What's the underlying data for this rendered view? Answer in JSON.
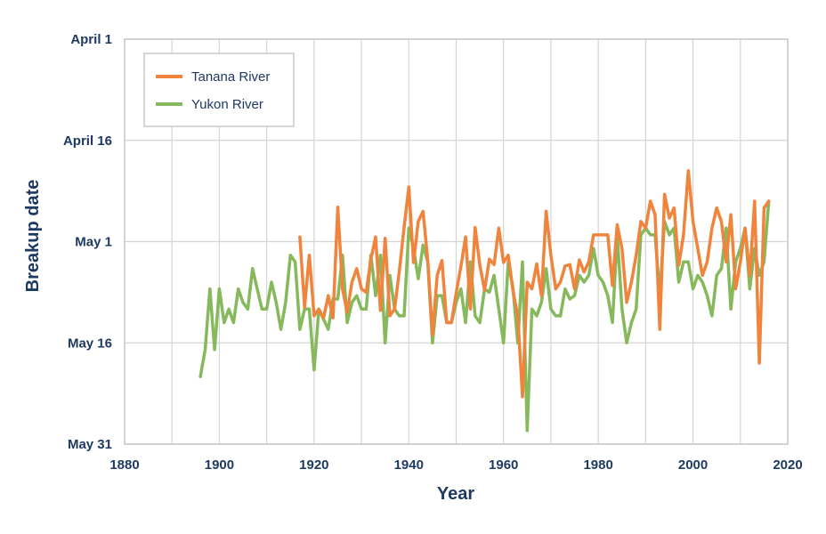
{
  "chart_data": {
    "type": "line",
    "title": "",
    "xlabel": "Year",
    "ylabel": "Breakup date",
    "xlim": [
      1880,
      2020
    ],
    "x_ticks": [
      1880,
      1900,
      1920,
      1940,
      1960,
      1980,
      2000,
      2020
    ],
    "ylim_day_of_year": [
      91,
      151
    ],
    "y_axis_inverted": true,
    "y_ticks": [
      {
        "label": "April 1",
        "day": 91
      },
      {
        "label": "April 16",
        "day": 106
      },
      {
        "label": "May 1",
        "day": 121
      },
      {
        "label": "May 16",
        "day": 136
      },
      {
        "label": "May 31",
        "day": 151
      }
    ],
    "grid": true,
    "legend": {
      "position": "top-left"
    },
    "series": [
      {
        "name": "Tanana River",
        "color": "#f0843c",
        "x": [
          1917,
          1918,
          1919,
          1920,
          1921,
          1922,
          1923,
          1924,
          1925,
          1926,
          1927,
          1928,
          1929,
          1930,
          1931,
          1932,
          1933,
          1934,
          1935,
          1936,
          1937,
          1938,
          1939,
          1940,
          1941,
          1942,
          1943,
          1944,
          1945,
          1946,
          1947,
          1948,
          1949,
          1950,
          1951,
          1952,
          1953,
          1954,
          1955,
          1956,
          1957,
          1958,
          1959,
          1960,
          1961,
          1962,
          1963,
          1964,
          1965,
          1966,
          1967,
          1968,
          1969,
          1970,
          1971,
          1972,
          1973,
          1974,
          1975,
          1976,
          1977,
          1978,
          1979,
          1980,
          1981,
          1982,
          1983,
          1984,
          1985,
          1986,
          1987,
          1988,
          1989,
          1990,
          1991,
          1992,
          1993,
          1994,
          1995,
          1996,
          1997,
          1998,
          1999,
          2000,
          2001,
          2002,
          2003,
          2004,
          2005,
          2006,
          2007,
          2008,
          2009,
          2010,
          2011,
          2012,
          2013,
          2014,
          2015,
          2016
        ],
        "values": [
          120.3,
          130.7,
          123.0,
          132.0,
          131.0,
          132.3,
          129.0,
          132.3,
          115.9,
          128.0,
          131.5,
          127.0,
          125.0,
          128.0,
          128.5,
          123.6,
          120.3,
          131.2,
          120.5,
          132.0,
          131.0,
          125.4,
          118.9,
          112.9,
          124.1,
          118.0,
          116.5,
          123.8,
          134.8,
          126.0,
          123.8,
          133.0,
          133.0,
          128.6,
          124.7,
          120.3,
          131.0,
          118.9,
          124.5,
          128.2,
          123.6,
          124.4,
          119.0,
          124.1,
          123.0,
          128.3,
          132.0,
          144.0,
          127.0,
          128.0,
          124.3,
          129.0,
          116.5,
          123.0,
          128.0,
          127.0,
          124.6,
          124.4,
          128.0,
          123.7,
          125.5,
          124.0,
          120.0,
          120.0,
          120.0,
          120.0,
          127.5,
          118.5,
          122.0,
          130.0,
          127.0,
          123.0,
          118.0,
          119.0,
          115.0,
          117.0,
          134.0,
          114.0,
          117.5,
          116.0,
          124.5,
          120.0,
          110.5,
          118.0,
          122.0,
          126.0,
          124.0,
          119.0,
          116.0,
          118.0,
          124.0,
          117.0,
          128.0,
          124.0,
          119.0,
          126.0,
          115.0,
          139.0,
          116.0,
          115.0
        ],
        "note_y_values": "day of year (e.g. 121 = May 1)"
      },
      {
        "name": "Yukon River",
        "color": "#86b85c",
        "x": [
          1896,
          1897,
          1898,
          1899,
          1900,
          1901,
          1902,
          1903,
          1904,
          1905,
          1906,
          1907,
          1908,
          1909,
          1910,
          1911,
          1912,
          1913,
          1914,
          1915,
          1916,
          1917,
          1918,
          1919,
          1920,
          1921,
          1922,
          1923,
          1924,
          1925,
          1926,
          1927,
          1928,
          1929,
          1930,
          1931,
          1932,
          1933,
          1934,
          1935,
          1936,
          1937,
          1938,
          1939,
          1940,
          1941,
          1942,
          1943,
          1944,
          1945,
          1946,
          1947,
          1948,
          1949,
          1950,
          1951,
          1952,
          1953,
          1954,
          1955,
          1956,
          1957,
          1958,
          1959,
          1960,
          1961,
          1962,
          1963,
          1964,
          1965,
          1966,
          1967,
          1968,
          1969,
          1970,
          1971,
          1972,
          1973,
          1974,
          1975,
          1976,
          1977,
          1978,
          1979,
          1980,
          1981,
          1982,
          1983,
          1984,
          1985,
          1986,
          1987,
          1988,
          1989,
          1990,
          1991,
          1992,
          1993,
          1994,
          1995,
          1996,
          1997,
          1998,
          1999,
          2000,
          2001,
          2002,
          2003,
          2004,
          2005,
          2006,
          2007,
          2008,
          2009,
          2010,
          2011,
          2012,
          2013,
          2014,
          2015,
          2016
        ],
        "values": [
          141.0,
          137.0,
          128.0,
          137.0,
          128.0,
          133.0,
          131.0,
          133.0,
          128.0,
          130.0,
          131.0,
          125.0,
          128.0,
          131.0,
          131.0,
          127.0,
          130.0,
          134.0,
          130.0,
          123.0,
          124.0,
          134.0,
          131.0,
          131.0,
          140.0,
          131.0,
          132.5,
          134.0,
          129.5,
          129.5,
          123.0,
          133.0,
          130.0,
          129.0,
          131.0,
          131.0,
          123.0,
          129.0,
          123.0,
          136.0,
          126.0,
          131.0,
          132.0,
          132.0,
          119.0,
          122.0,
          126.5,
          121.5,
          124.0,
          136.0,
          129.0,
          129.0,
          133.0,
          133.0,
          130.0,
          128.0,
          133.0,
          124.0,
          132.0,
          133.0,
          128.0,
          128.5,
          126.0,
          131.0,
          136.0,
          124.0,
          128.0,
          136.0,
          124.0,
          149.0,
          131.0,
          132.0,
          130.0,
          125.0,
          131.0,
          132.0,
          132.0,
          128.0,
          129.5,
          129.0,
          126.0,
          127.0,
          126.0,
          122.0,
          126.0,
          127.0,
          129.0,
          133.0,
          120.0,
          131.0,
          136.0,
          133.0,
          131.0,
          120.0,
          119.0,
          120.0,
          120.0,
          129.0,
          118.0,
          120.0,
          119.0,
          127.0,
          124.0,
          124.0,
          128.0,
          126.0,
          127.0,
          129.0,
          132.0,
          126.0,
          125.0,
          119.0,
          131.0,
          124.0,
          122.0,
          119.0,
          128.0,
          122.0,
          126.0,
          124.0,
          115.0
        ]
      }
    ]
  }
}
